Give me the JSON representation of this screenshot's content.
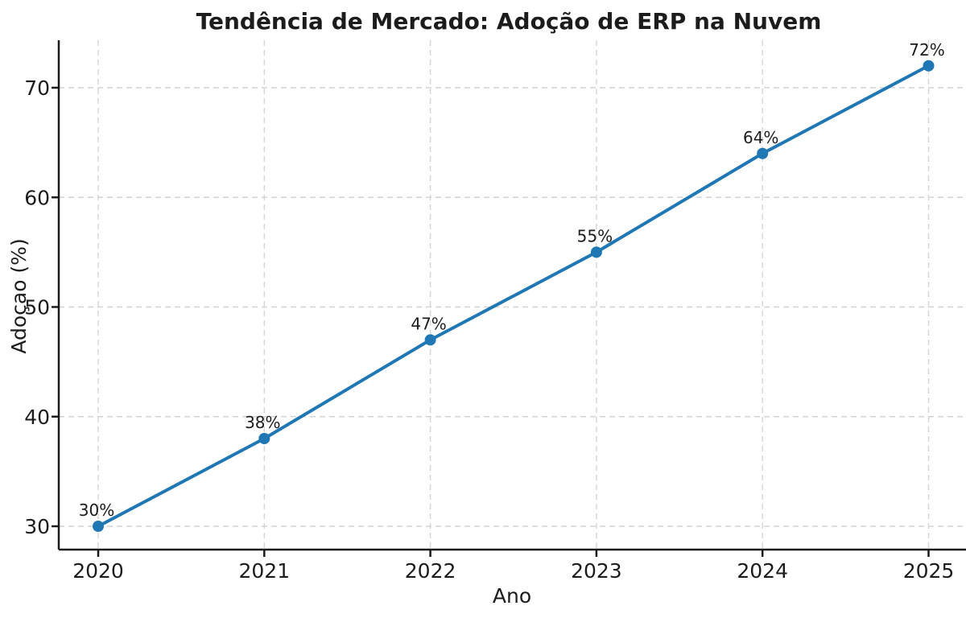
{
  "chart_data": {
    "type": "line",
    "title": "Tendência de Mercado: Adoção de ERP na Nuvem",
    "xlabel": "Ano",
    "ylabel": "Adoçao (%)",
    "categories": [
      2020,
      2021,
      2022,
      2023,
      2024,
      2025
    ],
    "series": [
      {
        "name": "Adoção de ERP na Nuvem",
        "values": [
          30,
          38,
          47,
          55,
          64,
          72
        ],
        "point_labels": [
          "30%",
          "38%",
          "47%",
          "55%",
          "64%",
          "72%"
        ]
      }
    ],
    "xtick_labels": [
      "2020",
      "2021",
      "2022",
      "2023",
      "2024",
      "2025"
    ],
    "ytick_values": [
      30,
      40,
      50,
      60,
      70
    ],
    "ytick_labels": [
      "30",
      "40",
      "50",
      "60",
      "70"
    ],
    "ylim": [
      27.9,
      74.3
    ],
    "grid": "dashed",
    "legend_position": "none",
    "marker": "circle"
  },
  "colors": {
    "line": "#1f77b4",
    "marker": "#1f77b4",
    "grid": "#d4d4d4",
    "axis": "#1a1a1a",
    "text": "#1c1c1c",
    "background": "#ffffff"
  }
}
